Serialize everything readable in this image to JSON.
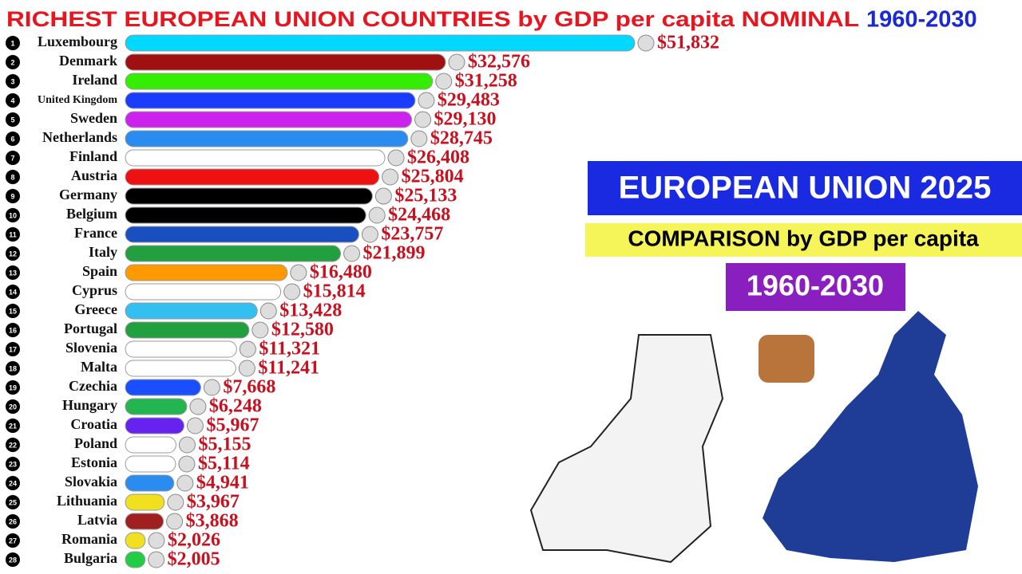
{
  "chart_data": {
    "type": "bar",
    "title": "RICHEST EUROPEAN UNION COUNTRIES by GDP per capita NOMINAL",
    "subtitle": "1960-2030",
    "panel": {
      "heading": "EUROPEAN UNION 2025",
      "subheading": "COMPARISON by GDP per capita",
      "years": "1960-2030"
    },
    "ranks": [
      1,
      2,
      3,
      4,
      5,
      6,
      7,
      8,
      9,
      10,
      11,
      12,
      13,
      14,
      15,
      16,
      17,
      18,
      19,
      20,
      21,
      22,
      23,
      24,
      25,
      26,
      27,
      28
    ],
    "categories": [
      "Luxembourg",
      "Denmark",
      "Ireland",
      "United Kingdom",
      "Sweden",
      "Netherlands",
      "Finland",
      "Austria",
      "Germany",
      "Belgium",
      "France",
      "Italy",
      "Spain",
      "Cyprus",
      "Greece",
      "Portugal",
      "Slovenia",
      "Malta",
      "Czechia",
      "Hungary",
      "Croatia",
      "Poland",
      "Estonia",
      "Slovakia",
      "Lithuania",
      "Latvia",
      "Romania",
      "Bulgaria"
    ],
    "values": [
      51832,
      32576,
      31258,
      29483,
      29130,
      28745,
      26408,
      25804,
      25133,
      24468,
      23757,
      21899,
      16480,
      15814,
      13428,
      12580,
      11321,
      11241,
      7668,
      6248,
      5967,
      5155,
      5114,
      4941,
      3967,
      3868,
      2026,
      2005
    ],
    "value_labels": [
      "$51,832",
      "$32,576",
      "$31,258",
      "$29,483",
      "$29,130",
      "$28,745",
      "$26,408",
      "$25,804",
      "$25,133",
      "$24,468",
      "$23,757",
      "$21,899",
      "$16,480",
      "$15,814",
      "$13,428",
      "$12,580",
      "$11,321",
      "$11,241",
      "$7,668",
      "$6,248",
      "$5,967",
      "$5,155",
      "$5,114",
      "$4,941",
      "$3,967",
      "$3,868",
      "$2,026",
      "$2,005"
    ],
    "colors": [
      "#00d8ff",
      "#a01010",
      "#33ee00",
      "#1a3cff",
      "#cc22ee",
      "#2a8cf0",
      "#ffffff",
      "#ee1111",
      "#000000",
      "#000000",
      "#1a4fc0",
      "#22a040",
      "#ff9900",
      "#ffffff",
      "#33c0f0",
      "#22a040",
      "#ffffff",
      "#ffffff",
      "#1a4fff",
      "#22b550",
      "#6622ee",
      "#ffffff",
      "#ffffff",
      "#2a8cf0",
      "#f0e020",
      "#a02020",
      "#f0e020",
      "#22cc44"
    ]
  }
}
